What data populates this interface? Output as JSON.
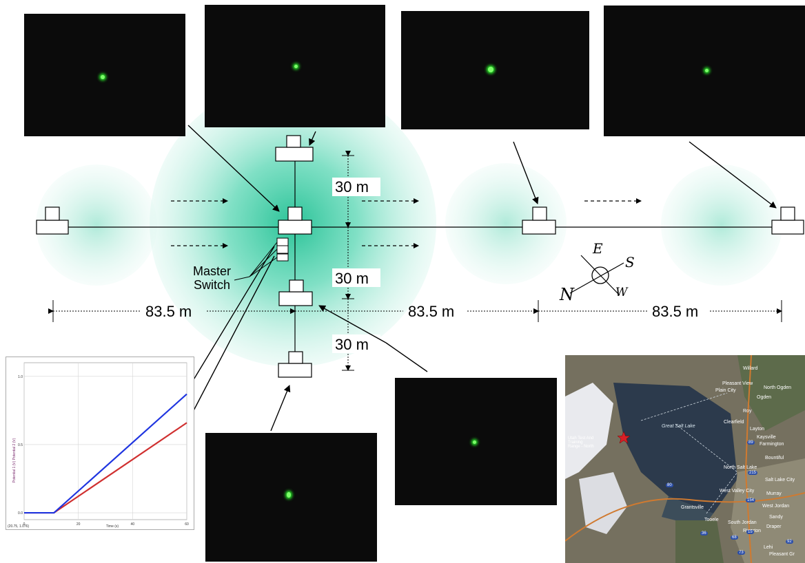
{
  "measurements": {
    "spacing_1": "83.5 m",
    "spacing_2": "83.5 m",
    "spacing_3": "83.5 m",
    "perp_1": "30 m",
    "perp_2": "30 m",
    "perp_3": "30 m"
  },
  "labels": {
    "master_line1": "Master",
    "master_line2": "Switch"
  },
  "compass": {
    "north": "N",
    "south": "S",
    "east": "E",
    "west": "W"
  },
  "colors": {
    "field_glow": "#2ec79f",
    "laser_green": "#39ff3a",
    "plot_blue": "#1f35e0",
    "plot_red": "#d03030"
  },
  "plot": {
    "xlabel": "Time (s)",
    "ylabel": "Potential 1 (V)  Potential 2 (V)",
    "readout": "(20.75, 1.076)",
    "x_ticks": [
      "0",
      "20",
      "40",
      "60"
    ],
    "y_ticks": [
      "0.0",
      "0.5",
      "1.0"
    ]
  },
  "chart_data": {
    "type": "line",
    "xlabel": "Time (s)",
    "ylabel": "Potential 1 (V)  Potential 2 (V)",
    "xlim": [
      0,
      60
    ],
    "ylim": [
      -0.05,
      1.1
    ],
    "grid": true,
    "series": [
      {
        "name": "Potential 1 (V)",
        "color": "#1f35e0",
        "x": [
          0,
          11,
          60
        ],
        "y": [
          0.0,
          0.0,
          0.87
        ]
      },
      {
        "name": "Potential 2 (V)",
        "color": "#d03030",
        "x": [
          0,
          11,
          60
        ],
        "y": [
          0.0,
          0.0,
          0.66
        ]
      }
    ]
  },
  "map": {
    "places": [
      "Willard",
      "Pleasant View",
      "North Ogden",
      "Plain City",
      "Ogden",
      "Roy",
      "Clearfield",
      "Layton",
      "Kaysville",
      "Farmington",
      "Bountiful",
      "North Salt Lake",
      "Salt Lake City",
      "West Valley City",
      "Murray",
      "West Jordan",
      "Sandy",
      "Draper",
      "Riverton",
      "South Jordan",
      "Grantsville",
      "Tooele",
      "Lehi",
      "Pleasant Gr"
    ],
    "lake": "Great Salt Lake",
    "site": "Utah Test And Training Range - North",
    "shields": [
      "80",
      "215",
      "15",
      "154",
      "89",
      "36",
      "73",
      "92",
      "68"
    ]
  }
}
